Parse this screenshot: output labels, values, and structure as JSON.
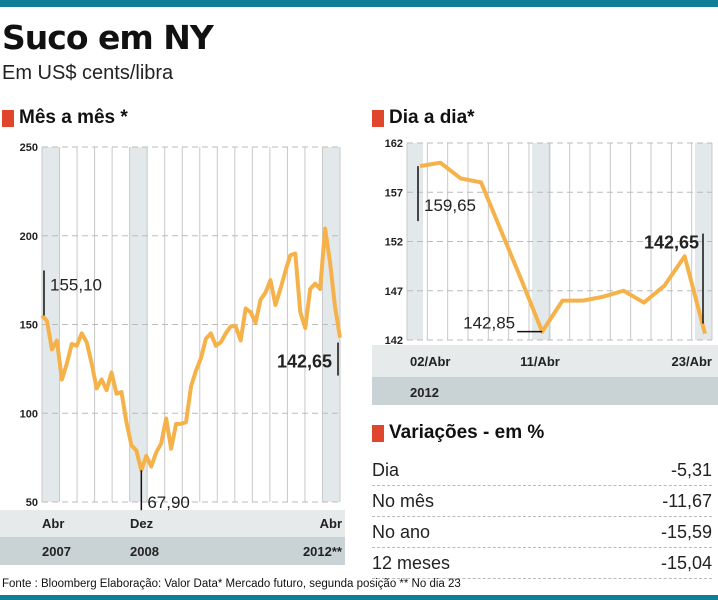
{
  "header": {
    "title": "Suco em NY",
    "subtitle": "Em US$ cents/libra"
  },
  "colors": {
    "line": "#f6b24a",
    "accent": "#e0462e",
    "bar": "#0e7f96",
    "band_light": "#e6eaeb",
    "band_dark": "#c9d3d6"
  },
  "chart_data": [
    {
      "type": "line",
      "title": "Mês a mês *",
      "ylim": [
        50,
        250
      ],
      "yticks": [
        "50",
        "100",
        "150",
        "200",
        "250"
      ],
      "xtick_labels": [
        "Abr",
        "Dez",
        "Abr"
      ],
      "year_labels": [
        "2007",
        "2008",
        "2012**"
      ],
      "x_start": "Abr 2007",
      "x_end": "Abr 2012",
      "values": [
        155.1,
        152,
        136,
        141,
        119,
        128,
        139,
        138,
        145,
        140,
        128,
        114,
        119,
        113,
        123,
        111,
        112,
        95,
        82,
        79,
        67.9,
        76,
        70,
        78,
        83,
        97,
        80,
        94,
        94,
        95,
        115,
        124,
        131,
        142,
        145,
        138,
        140,
        145,
        149,
        149,
        141,
        159,
        157,
        151,
        164,
        168,
        175,
        161,
        170,
        180,
        189,
        190,
        157,
        148,
        170,
        173,
        170,
        204,
        185,
        160,
        142.65
      ],
      "annotations": [
        {
          "label": "155,10",
          "index": 0
        },
        {
          "label": "67,90",
          "index": 20
        },
        {
          "label": "142,65",
          "index": 60
        }
      ]
    },
    {
      "type": "line",
      "title": "Dia a dia*",
      "ylim": [
        142,
        162
      ],
      "yticks": [
        "142",
        "147",
        "152",
        "157",
        "162"
      ],
      "xtick_labels": [
        "02/Abr",
        "11/Abr",
        "23/Abr"
      ],
      "year_labels": [
        "2012"
      ],
      "values": [
        159.65,
        160,
        158.4,
        158,
        153,
        148,
        142.85,
        146,
        146,
        146.4,
        147,
        145.8,
        147.5,
        150.5,
        142.65
      ],
      "annotations": [
        {
          "label": "159,65",
          "index": 0
        },
        {
          "label": "142,85",
          "index": 6
        },
        {
          "label": "142,65",
          "index": 14
        }
      ]
    }
  ],
  "variations": {
    "title": "Variações - em %",
    "rows": [
      {
        "label": "Dia",
        "value": "-5,31"
      },
      {
        "label": "No mês",
        "value": "-11,67"
      },
      {
        "label": "No ano",
        "value": "-15,59"
      },
      {
        "label": "12 meses",
        "value": "-15,04"
      }
    ]
  },
  "footer": "Fonte : Bloomberg Elaboração: Valor Data* Mercado futuro, segunda posição ** No dia 23"
}
